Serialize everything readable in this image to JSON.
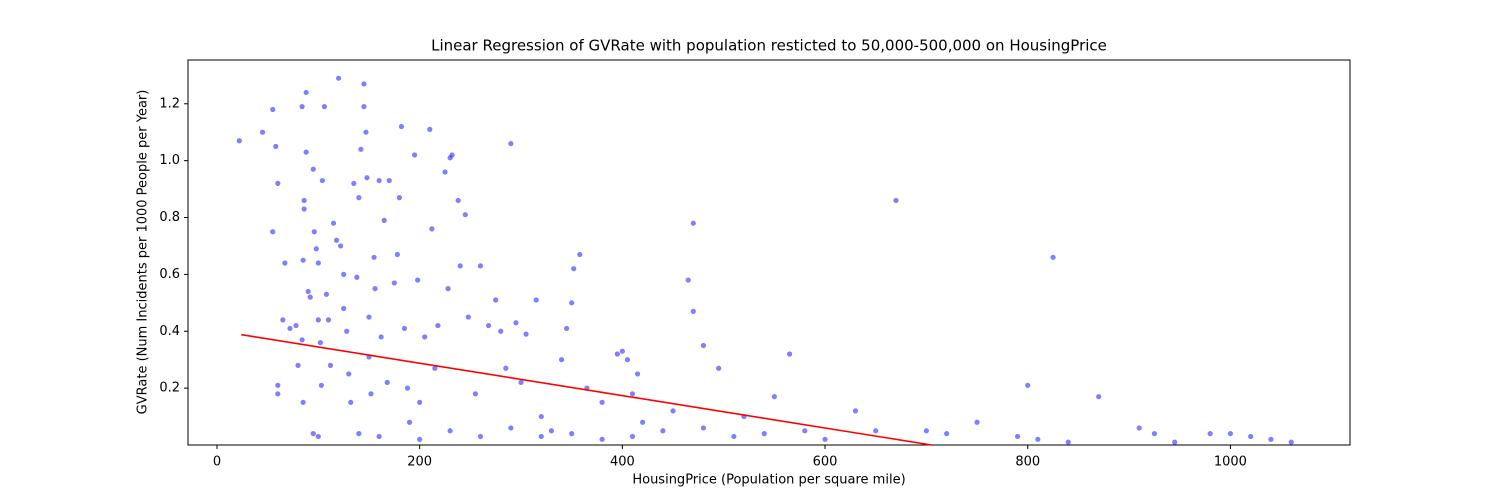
{
  "chart_data": {
    "type": "scatter",
    "title": "Linear Regression of GVRate with population resticted to 50,000-500,000 on HousingPrice",
    "x_label": "HousingPrice (Population per square mile)",
    "y_label": "GVRate (Num Incidents per 1000 People per Year)",
    "color": "#0000ff",
    "x": [
      22,
      45,
      55,
      58,
      60,
      55,
      60,
      60,
      67,
      65,
      72,
      78,
      80,
      84,
      86,
      86,
      88,
      88,
      90,
      92,
      85,
      84,
      85,
      95,
      96,
      98,
      100,
      100,
      102,
      103,
      95,
      100,
      104,
      106,
      108,
      110,
      112,
      115,
      118,
      120,
      122,
      125,
      125,
      128,
      130,
      132,
      135,
      138,
      140,
      142,
      145,
      145,
      147,
      148,
      150,
      150,
      152,
      155,
      156,
      160,
      162,
      165,
      168,
      170,
      175,
      178,
      180,
      182,
      185,
      188,
      190,
      195,
      198,
      200,
      205,
      210,
      212,
      215,
      218,
      225,
      228,
      230,
      232,
      238,
      240,
      245,
      248,
      255,
      260,
      268,
      275,
      280,
      285,
      290,
      295,
      300,
      305,
      315,
      320,
      330,
      340,
      345,
      350,
      352,
      358,
      365,
      380,
      395,
      400,
      405,
      410,
      415,
      420,
      450,
      465,
      470,
      470,
      480,
      495,
      520,
      550,
      565,
      580,
      630,
      650,
      670,
      700,
      720,
      750,
      790,
      800,
      810,
      825,
      840,
      870,
      910,
      925,
      945,
      980,
      1000,
      1020,
      1040,
      1060,
      140,
      160,
      200,
      230,
      260,
      290,
      320,
      350,
      380,
      410,
      440,
      480,
      510,
      540,
      600
    ],
    "y": [
      1.07,
      1.1,
      1.18,
      1.05,
      0.92,
      0.75,
      0.21,
      0.18,
      0.64,
      0.44,
      0.41,
      0.42,
      0.28,
      1.19,
      0.86,
      0.83,
      1.24,
      1.03,
      0.54,
      0.52,
      0.65,
      0.37,
      0.15,
      0.97,
      0.75,
      0.69,
      0.64,
      0.44,
      0.36,
      0.21,
      0.04,
      0.03,
      0.93,
      1.19,
      0.53,
      0.44,
      0.28,
      0.78,
      0.72,
      1.29,
      0.7,
      0.6,
      0.48,
      0.4,
      0.25,
      0.15,
      0.92,
      0.59,
      0.87,
      1.04,
      1.27,
      1.19,
      1.1,
      0.94,
      0.45,
      0.31,
      0.18,
      0.66,
      0.55,
      0.93,
      0.38,
      0.79,
      0.22,
      0.93,
      0.57,
      0.67,
      0.87,
      1.12,
      0.41,
      0.2,
      0.08,
      1.02,
      0.58,
      0.15,
      0.38,
      1.11,
      0.76,
      0.27,
      0.42,
      0.96,
      0.55,
      1.01,
      1.02,
      0.86,
      0.63,
      0.81,
      0.45,
      0.18,
      0.63,
      0.42,
      0.51,
      0.4,
      0.27,
      1.06,
      0.43,
      0.22,
      0.39,
      0.51,
      0.1,
      0.05,
      0.3,
      0.41,
      0.5,
      0.62,
      0.67,
      0.2,
      0.15,
      0.32,
      0.33,
      0.3,
      0.18,
      0.25,
      0.08,
      0.12,
      0.58,
      0.78,
      0.47,
      0.35,
      0.27,
      0.1,
      0.17,
      0.32,
      0.05,
      0.12,
      0.05,
      0.86,
      0.05,
      0.04,
      0.08,
      0.03,
      0.21,
      0.02,
      0.66,
      0.01,
      0.17,
      0.06,
      0.04,
      0.01,
      0.04,
      0.04,
      0.03,
      0.02,
      0.01,
      0.04,
      0.03,
      0.02,
      0.05,
      0.03,
      0.06,
      0.03,
      0.04,
      0.02,
      0.03,
      0.05,
      0.06,
      0.03,
      0.04,
      0.02
    ],
    "fit_line": {
      "color": "#ff0000",
      "x": [
        24,
        705
      ],
      "y": [
        0.388,
        0
      ]
    },
    "xlim": [
      -28.6,
      1118
    ],
    "ylim": [
      0,
      1.354
    ],
    "xticks": [
      0,
      200,
      400,
      600,
      800,
      1000
    ],
    "yticks": [
      0.2,
      0.4,
      0.6,
      0.8,
      {
        "value": 1,
        "label": "1.0"
      },
      1.2
    ]
  }
}
